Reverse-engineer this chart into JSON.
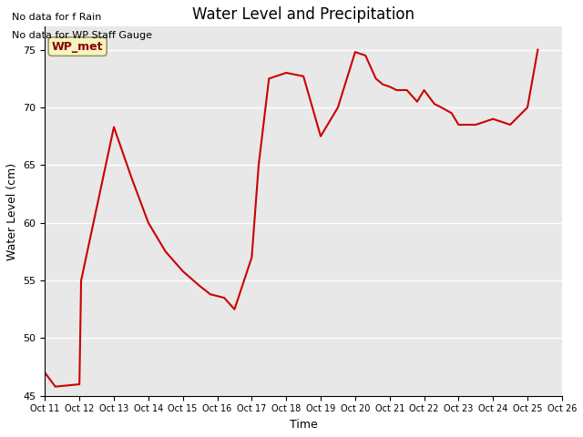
{
  "title": "Water Level and Precipitation",
  "xlabel": "Time",
  "ylabel": "Water Level (cm)",
  "note_line1": "No data for f Rain",
  "note_line2": "No data for WP Staff Gauge",
  "wp_met_label": "WP_met",
  "line_color": "#cc0000",
  "legend_line_color": "#cc0000",
  "background_color": "#e8e8e8",
  "x_tick_labels": [
    "Oct 11",
    "Oct 12",
    "Oct 13",
    "Oct 14",
    "Oct 15",
    "Oct 16",
    "Oct 17",
    "Oct 18",
    "Oct 19",
    "Oct 20",
    "Oct 21",
    "Oct 22",
    "Oct 23",
    "Oct 24",
    "Oct 25",
    "Oct 26"
  ],
  "yticks": [
    45,
    50,
    55,
    60,
    65,
    70,
    75
  ],
  "x_data": [
    11,
    11.3,
    12.0,
    12.05,
    13.0,
    13.5,
    14.0,
    14.5,
    15.0,
    15.5,
    15.8,
    16.2,
    16.5,
    17.0,
    17.2,
    17.5,
    18.0,
    18.5,
    19.0,
    19.5,
    20.0,
    20.3,
    20.6,
    20.8,
    21.0,
    21.2,
    21.5,
    21.8,
    22.0,
    22.3,
    22.5,
    22.8,
    23.0,
    23.5,
    24.0,
    24.5,
    25.0,
    25.3
  ],
  "y_data": [
    47.0,
    45.8,
    46.0,
    55.0,
    68.3,
    64.0,
    60.0,
    57.5,
    55.8,
    54.5,
    53.8,
    53.5,
    52.5,
    57.0,
    65.0,
    72.5,
    73.0,
    72.7,
    67.5,
    70.0,
    74.8,
    74.5,
    72.5,
    72.0,
    71.8,
    71.5,
    71.5,
    70.5,
    71.5,
    70.3,
    70.0,
    69.5,
    68.5,
    68.5,
    69.0,
    68.5,
    70.0,
    75.0
  ]
}
